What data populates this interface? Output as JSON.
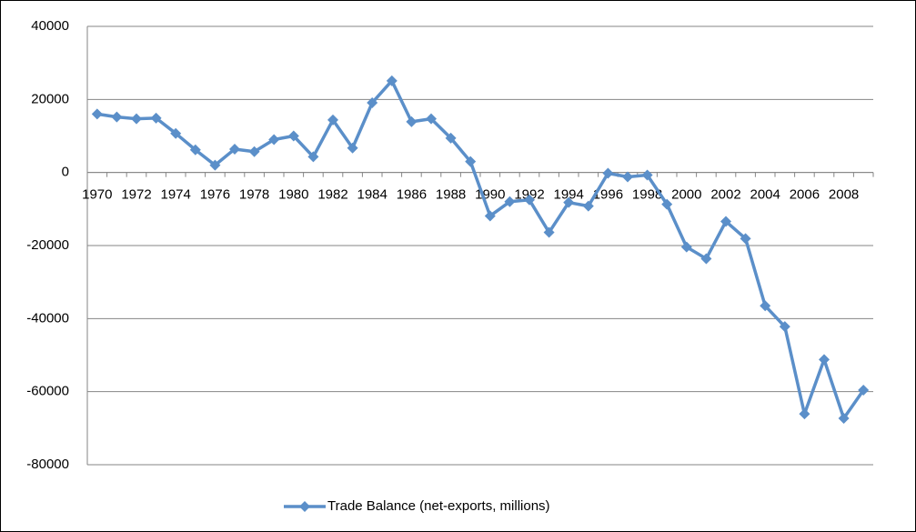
{
  "chart_data": {
    "type": "line",
    "categories": [
      "1970",
      null,
      "1972",
      null,
      "1974",
      null,
      "1976",
      null,
      "1978",
      null,
      "1980",
      null,
      "1982",
      null,
      "1984",
      null,
      "1986",
      null,
      "1988",
      null,
      "1990",
      null,
      "1992",
      null,
      "1994",
      null,
      "1996",
      null,
      "1998",
      null,
      "2000",
      null,
      "2002",
      null,
      "2004",
      null,
      "2006",
      null,
      "2008",
      null
    ],
    "series": [
      {
        "name": "Trade Balance (net-exports, millions)",
        "color": "#5b8fc9",
        "values": [
          16000,
          15200,
          14700,
          14900,
          10700,
          6200,
          2000,
          6400,
          5700,
          9000,
          10000,
          4300,
          14400,
          6700,
          19100,
          25100,
          13900,
          14700,
          9400,
          3000,
          -11900,
          -8000,
          -7500,
          -16400,
          -8200,
          -9200,
          -200,
          -1200,
          -700,
          -8700,
          -20400,
          -23600,
          -13400,
          -18100,
          -36500,
          -42200,
          -66100,
          -51200,
          -67300,
          -59600
        ]
      }
    ],
    "ylim": [
      -80000,
      40000
    ],
    "yticks": [
      -80000,
      -60000,
      -40000,
      -20000,
      0,
      20000,
      40000
    ],
    "grid": true,
    "legend": "bottom"
  }
}
